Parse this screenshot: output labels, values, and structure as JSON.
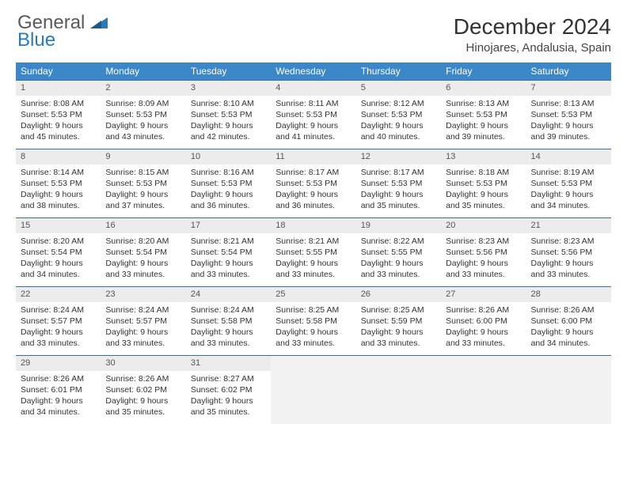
{
  "logo": {
    "line1": "General",
    "line2": "Blue"
  },
  "title": "December 2024",
  "location": "Hinojares, Andalusia, Spain",
  "colors": {
    "header_bg": "#3b87c8",
    "header_text": "#ffffff",
    "week_border": "#3b6fa0",
    "daynum_bg": "#ececec",
    "empty_bg": "#f2f2f2",
    "logo_gray": "#5a5a5a",
    "logo_blue": "#2a7ab9"
  },
  "weekdays": [
    "Sunday",
    "Monday",
    "Tuesday",
    "Wednesday",
    "Thursday",
    "Friday",
    "Saturday"
  ],
  "weeks": [
    [
      {
        "n": "1",
        "sunrise": "Sunrise: 8:08 AM",
        "sunset": "Sunset: 5:53 PM",
        "daylight": "Daylight: 9 hours and 45 minutes."
      },
      {
        "n": "2",
        "sunrise": "Sunrise: 8:09 AM",
        "sunset": "Sunset: 5:53 PM",
        "daylight": "Daylight: 9 hours and 43 minutes."
      },
      {
        "n": "3",
        "sunrise": "Sunrise: 8:10 AM",
        "sunset": "Sunset: 5:53 PM",
        "daylight": "Daylight: 9 hours and 42 minutes."
      },
      {
        "n": "4",
        "sunrise": "Sunrise: 8:11 AM",
        "sunset": "Sunset: 5:53 PM",
        "daylight": "Daylight: 9 hours and 41 minutes."
      },
      {
        "n": "5",
        "sunrise": "Sunrise: 8:12 AM",
        "sunset": "Sunset: 5:53 PM",
        "daylight": "Daylight: 9 hours and 40 minutes."
      },
      {
        "n": "6",
        "sunrise": "Sunrise: 8:13 AM",
        "sunset": "Sunset: 5:53 PM",
        "daylight": "Daylight: 9 hours and 39 minutes."
      },
      {
        "n": "7",
        "sunrise": "Sunrise: 8:13 AM",
        "sunset": "Sunset: 5:53 PM",
        "daylight": "Daylight: 9 hours and 39 minutes."
      }
    ],
    [
      {
        "n": "8",
        "sunrise": "Sunrise: 8:14 AM",
        "sunset": "Sunset: 5:53 PM",
        "daylight": "Daylight: 9 hours and 38 minutes."
      },
      {
        "n": "9",
        "sunrise": "Sunrise: 8:15 AM",
        "sunset": "Sunset: 5:53 PM",
        "daylight": "Daylight: 9 hours and 37 minutes."
      },
      {
        "n": "10",
        "sunrise": "Sunrise: 8:16 AM",
        "sunset": "Sunset: 5:53 PM",
        "daylight": "Daylight: 9 hours and 36 minutes."
      },
      {
        "n": "11",
        "sunrise": "Sunrise: 8:17 AM",
        "sunset": "Sunset: 5:53 PM",
        "daylight": "Daylight: 9 hours and 36 minutes."
      },
      {
        "n": "12",
        "sunrise": "Sunrise: 8:17 AM",
        "sunset": "Sunset: 5:53 PM",
        "daylight": "Daylight: 9 hours and 35 minutes."
      },
      {
        "n": "13",
        "sunrise": "Sunrise: 8:18 AM",
        "sunset": "Sunset: 5:53 PM",
        "daylight": "Daylight: 9 hours and 35 minutes."
      },
      {
        "n": "14",
        "sunrise": "Sunrise: 8:19 AM",
        "sunset": "Sunset: 5:53 PM",
        "daylight": "Daylight: 9 hours and 34 minutes."
      }
    ],
    [
      {
        "n": "15",
        "sunrise": "Sunrise: 8:20 AM",
        "sunset": "Sunset: 5:54 PM",
        "daylight": "Daylight: 9 hours and 34 minutes."
      },
      {
        "n": "16",
        "sunrise": "Sunrise: 8:20 AM",
        "sunset": "Sunset: 5:54 PM",
        "daylight": "Daylight: 9 hours and 33 minutes."
      },
      {
        "n": "17",
        "sunrise": "Sunrise: 8:21 AM",
        "sunset": "Sunset: 5:54 PM",
        "daylight": "Daylight: 9 hours and 33 minutes."
      },
      {
        "n": "18",
        "sunrise": "Sunrise: 8:21 AM",
        "sunset": "Sunset: 5:55 PM",
        "daylight": "Daylight: 9 hours and 33 minutes."
      },
      {
        "n": "19",
        "sunrise": "Sunrise: 8:22 AM",
        "sunset": "Sunset: 5:55 PM",
        "daylight": "Daylight: 9 hours and 33 minutes."
      },
      {
        "n": "20",
        "sunrise": "Sunrise: 8:23 AM",
        "sunset": "Sunset: 5:56 PM",
        "daylight": "Daylight: 9 hours and 33 minutes."
      },
      {
        "n": "21",
        "sunrise": "Sunrise: 8:23 AM",
        "sunset": "Sunset: 5:56 PM",
        "daylight": "Daylight: 9 hours and 33 minutes."
      }
    ],
    [
      {
        "n": "22",
        "sunrise": "Sunrise: 8:24 AM",
        "sunset": "Sunset: 5:57 PM",
        "daylight": "Daylight: 9 hours and 33 minutes."
      },
      {
        "n": "23",
        "sunrise": "Sunrise: 8:24 AM",
        "sunset": "Sunset: 5:57 PM",
        "daylight": "Daylight: 9 hours and 33 minutes."
      },
      {
        "n": "24",
        "sunrise": "Sunrise: 8:24 AM",
        "sunset": "Sunset: 5:58 PM",
        "daylight": "Daylight: 9 hours and 33 minutes."
      },
      {
        "n": "25",
        "sunrise": "Sunrise: 8:25 AM",
        "sunset": "Sunset: 5:58 PM",
        "daylight": "Daylight: 9 hours and 33 minutes."
      },
      {
        "n": "26",
        "sunrise": "Sunrise: 8:25 AM",
        "sunset": "Sunset: 5:59 PM",
        "daylight": "Daylight: 9 hours and 33 minutes."
      },
      {
        "n": "27",
        "sunrise": "Sunrise: 8:26 AM",
        "sunset": "Sunset: 6:00 PM",
        "daylight": "Daylight: 9 hours and 33 minutes."
      },
      {
        "n": "28",
        "sunrise": "Sunrise: 8:26 AM",
        "sunset": "Sunset: 6:00 PM",
        "daylight": "Daylight: 9 hours and 34 minutes."
      }
    ],
    [
      {
        "n": "29",
        "sunrise": "Sunrise: 8:26 AM",
        "sunset": "Sunset: 6:01 PM",
        "daylight": "Daylight: 9 hours and 34 minutes."
      },
      {
        "n": "30",
        "sunrise": "Sunrise: 8:26 AM",
        "sunset": "Sunset: 6:02 PM",
        "daylight": "Daylight: 9 hours and 35 minutes."
      },
      {
        "n": "31",
        "sunrise": "Sunrise: 8:27 AM",
        "sunset": "Sunset: 6:02 PM",
        "daylight": "Daylight: 9 hours and 35 minutes."
      },
      null,
      null,
      null,
      null
    ]
  ]
}
